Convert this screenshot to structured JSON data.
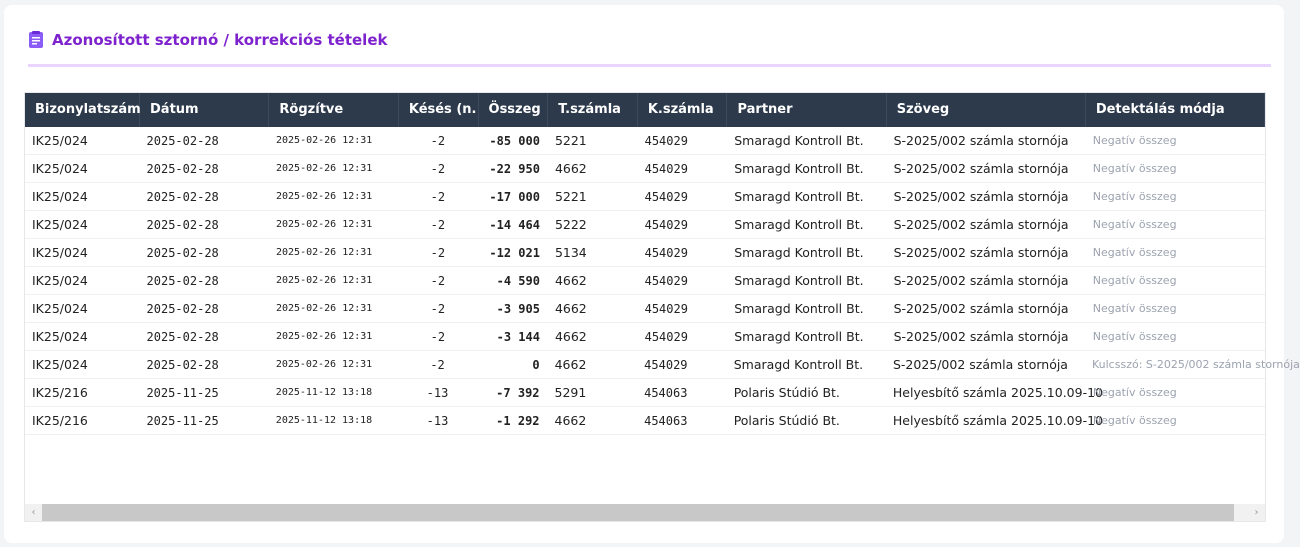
{
  "title": "Azonosított sztornó / korrekciós tételek",
  "icon": "clipboard-icon",
  "accent": "#7e22ce",
  "columns": [
    "Bizonylatszám",
    "Dátum",
    "Rögzítve",
    "Késés (n.",
    "Összeg",
    "T.számla",
    "K.számla",
    "Partner",
    "Szöveg",
    "Detektálás módja"
  ],
  "rows": [
    [
      "IK25/024",
      "2025-02-28",
      "2025-02-26 12:31",
      "-2",
      "-85 000",
      "5221",
      "454029",
      "Smaragd Kontroll Bt.",
      "S-2025/002 számla stornója",
      "Negatív összeg"
    ],
    [
      "IK25/024",
      "2025-02-28",
      "2025-02-26 12:31",
      "-2",
      "-22 950",
      "4662",
      "454029",
      "Smaragd Kontroll Bt.",
      "S-2025/002 számla stornója",
      "Negatív összeg"
    ],
    [
      "IK25/024",
      "2025-02-28",
      "2025-02-26 12:31",
      "-2",
      "-17 000",
      "5221",
      "454029",
      "Smaragd Kontroll Bt.",
      "S-2025/002 számla stornója",
      "Negatív összeg"
    ],
    [
      "IK25/024",
      "2025-02-28",
      "2025-02-26 12:31",
      "-2",
      "-14 464",
      "5222",
      "454029",
      "Smaragd Kontroll Bt.",
      "S-2025/002 számla stornója",
      "Negatív összeg"
    ],
    [
      "IK25/024",
      "2025-02-28",
      "2025-02-26 12:31",
      "-2",
      "-12 021",
      "5134",
      "454029",
      "Smaragd Kontroll Bt.",
      "S-2025/002 számla stornója",
      "Negatív összeg"
    ],
    [
      "IK25/024",
      "2025-02-28",
      "2025-02-26 12:31",
      "-2",
      "-4 590",
      "4662",
      "454029",
      "Smaragd Kontroll Bt.",
      "S-2025/002 számla stornója",
      "Negatív összeg"
    ],
    [
      "IK25/024",
      "2025-02-28",
      "2025-02-26 12:31",
      "-2",
      "-3 905",
      "4662",
      "454029",
      "Smaragd Kontroll Bt.",
      "S-2025/002 számla stornója",
      "Negatív összeg"
    ],
    [
      "IK25/024",
      "2025-02-28",
      "2025-02-26 12:31",
      "-2",
      "-3 144",
      "4662",
      "454029",
      "Smaragd Kontroll Bt.",
      "S-2025/002 számla stornója",
      "Negatív összeg"
    ],
    [
      "IK25/024",
      "2025-02-28",
      "2025-02-26 12:31",
      "-2",
      "0",
      "4662",
      "454029",
      "Smaragd Kontroll Bt.",
      "S-2025/002 számla stornója",
      "Kulcsszó: S-2025/002 számla stornója"
    ],
    [
      "IK25/216",
      "2025-11-25",
      "2025-11-12 13:18",
      "-13",
      "-7 392",
      "5291",
      "454063",
      "Polaris Stúdió Bt.",
      "Helyesbítő számla 2025.10.09-10",
      "Negatív összeg"
    ],
    [
      "IK25/216",
      "2025-11-25",
      "2025-11-12 13:18",
      "-13",
      "-1 292",
      "4662",
      "454063",
      "Polaris Stúdió Bt.",
      "Helyesbítő számla 2025.10.09-10",
      "Negatív összeg"
    ]
  ],
  "scrollbar": {
    "left": "‹",
    "right": "›"
  }
}
